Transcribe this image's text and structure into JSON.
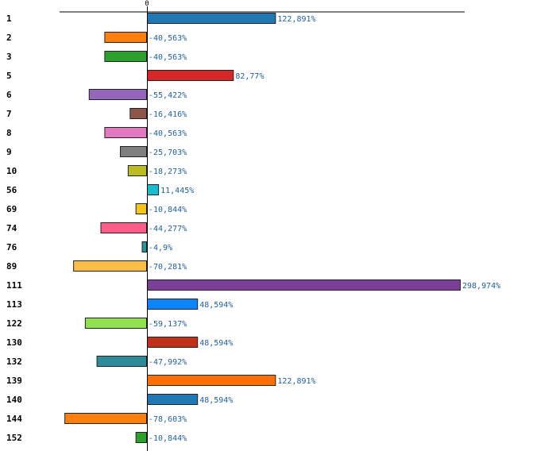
{
  "chart_data": {
    "type": "bar",
    "orientation": "horizontal",
    "title": "",
    "xlabel": "",
    "ylabel": "",
    "xlim": [
      -100,
      300
    ],
    "zero_tick_label": "0",
    "grid": false,
    "legend": "none",
    "categories": [
      "1",
      "2",
      "3",
      "5",
      "6",
      "7",
      "8",
      "9",
      "10",
      "56",
      "69",
      "74",
      "76",
      "89",
      "111",
      "113",
      "122",
      "130",
      "132",
      "139",
      "140",
      "144",
      "152"
    ],
    "values": [
      122.891,
      -40.563,
      -40.563,
      82.77,
      -55.422,
      -16.416,
      -40.563,
      -25.703,
      -18.273,
      11.445,
      -10.844,
      -44.277,
      -4.9,
      -70.281,
      298.974,
      48.594,
      -59.137,
      48.594,
      -47.992,
      122.891,
      48.594,
      -78.603,
      -10.844
    ],
    "value_labels": [
      "122,891%",
      "-40,563%",
      "-40,563%",
      "82,77%",
      "-55,422%",
      "-16,416%",
      "-40,563%",
      "-25,703%",
      "-18,273%",
      "11,445%",
      "-10,844%",
      "-44,277%",
      "-4,9%",
      "-70,281%",
      "298,974%",
      "48,594%",
      "-59,137%",
      "48,594%",
      "-47,992%",
      "122,891%",
      "48,594%",
      "-78,603%",
      "-10,844%"
    ],
    "colors": [
      "#1f77b4",
      "#ff7f0e",
      "#2ca02c",
      "#d62728",
      "#9467bd",
      "#8c564b",
      "#e377c2",
      "#7f7f7f",
      "#bcbd22",
      "#17becf",
      "#f5c518",
      "#ff5c8a",
      "#1f9a9a",
      "#fbbf45",
      "#7b3f9a",
      "#0a84ff",
      "#90e050",
      "#c0301a",
      "#2e8b9a",
      "#ff6f00",
      "#1f77b4",
      "#ff7f0e",
      "#2ca02c"
    ]
  }
}
